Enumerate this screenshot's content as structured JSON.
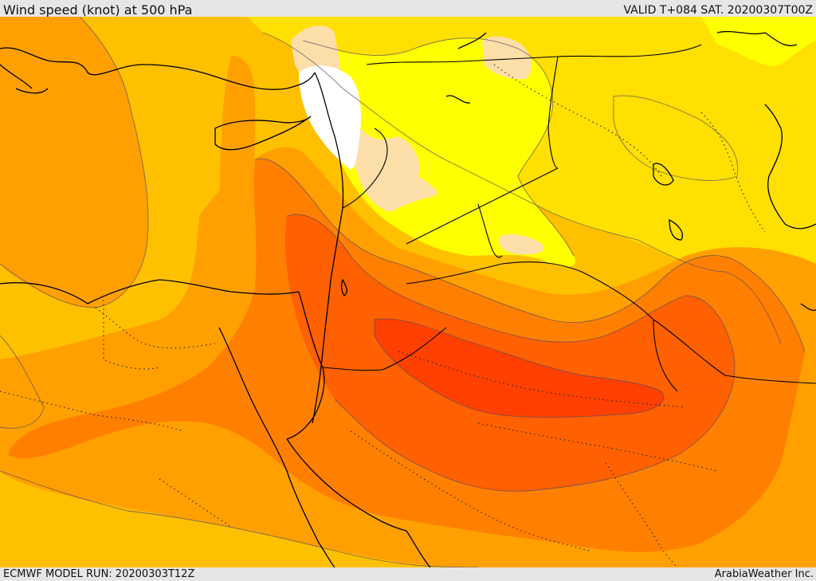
{
  "header": {
    "title": "Wind speed (knot) at 500 hPa",
    "valid_time": "VALID T+084 SAT. 20200307T00Z"
  },
  "footer": {
    "model_run": "ECMWF MODEL RUN: 20200303T12Z",
    "credit": "ArabiaWeather Inc."
  },
  "map": {
    "field": "wind speed at 500 hPa",
    "colors": {
      "white": "#ffffff",
      "light_peach": "#fcdfa8",
      "yellow": "#ffff00",
      "gold": "#ffe000",
      "amber": "#ffc000",
      "orange": "#ffa000",
      "dark_orange": "#ff8000",
      "orange_red": "#ff6000",
      "red_orange": "#ff4000"
    }
  }
}
